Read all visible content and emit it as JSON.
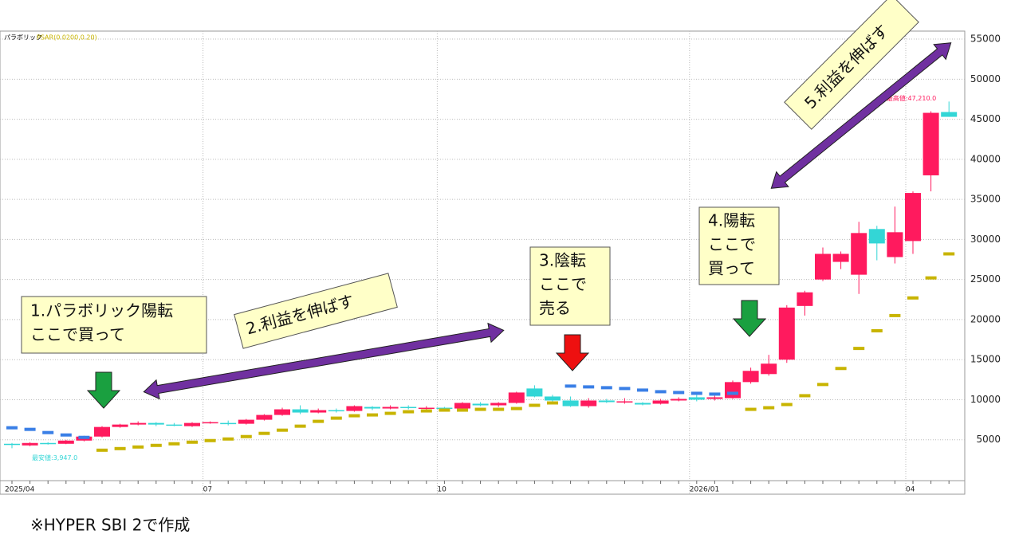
{
  "chart_data": {
    "type": "candlestick",
    "indicator_label": "パラボリック",
    "psar_label": "PSAR(0.0200,0.20)",
    "categories": [
      "2025/04",
      null,
      null,
      null,
      null,
      null,
      null,
      null,
      null,
      null,
      null,
      "07",
      null,
      null,
      null,
      null,
      null,
      null,
      null,
      null,
      null,
      null,
      null,
      null,
      "10",
      null,
      null,
      null,
      null,
      null,
      null,
      null,
      null,
      null,
      null,
      null,
      null,
      null,
      "2026/01",
      null,
      null,
      null,
      null,
      null,
      null,
      null,
      null,
      null,
      null,
      null,
      "04",
      null,
      null
    ],
    "open": [
      4500,
      4300,
      4600,
      4500,
      4900,
      5400,
      6600,
      6900,
      7100,
      6900,
      6700,
      7100,
      7100,
      7000,
      7500,
      8100,
      8800,
      8400,
      8700,
      8600,
      9100,
      8900,
      9100,
      8900,
      9000,
      8900,
      9500,
      9300,
      9600,
      11400,
      10400,
      9900,
      9200,
      9900,
      9700,
      9600,
      9500,
      9900,
      10300,
      10100,
      10200,
      12200,
      13200,
      15000,
      21700,
      25000,
      27200,
      25600,
      31300,
      27800,
      29800,
      38000,
      45900
    ],
    "high": [
      4600,
      4700,
      4700,
      5000,
      5500,
      6700,
      7000,
      7300,
      7200,
      7100,
      7200,
      7300,
      7400,
      7600,
      8200,
      9000,
      9300,
      8900,
      8900,
      9300,
      9200,
      9300,
      9300,
      9200,
      9100,
      9700,
      9700,
      9700,
      11000,
      11800,
      10600,
      10400,
      10200,
      10100,
      10200,
      9700,
      10100,
      10300,
      10600,
      10500,
      12400,
      14000,
      15600,
      21800,
      23600,
      29000,
      28500,
      32200,
      31700,
      34100,
      36000,
      46000,
      47210
    ],
    "low": [
      3947,
      4200,
      4400,
      4450,
      4800,
      5300,
      6500,
      6800,
      6700,
      6700,
      6600,
      7000,
      6800,
      6900,
      7400,
      8000,
      8200,
      8300,
      8400,
      8500,
      8700,
      8800,
      8800,
      8700,
      8700,
      8800,
      9200,
      9100,
      9500,
      10300,
      9800,
      9100,
      9000,
      9600,
      9500,
      9300,
      9400,
      9800,
      9800,
      9900,
      10100,
      12000,
      13000,
      14600,
      20500,
      24800,
      26300,
      23200,
      27400,
      27000,
      28200,
      36000,
      45300
    ],
    "close": [
      4350,
      4600,
      4500,
      4900,
      5400,
      6600,
      6900,
      7100,
      6900,
      6850,
      7100,
      7200,
      7050,
      7500,
      8100,
      8800,
      8400,
      8700,
      8600,
      9200,
      8900,
      9100,
      8950,
      9000,
      8900,
      9600,
      9300,
      9600,
      10900,
      10400,
      9900,
      9200,
      9900,
      9700,
      9800,
      9400,
      9900,
      10100,
      10000,
      10300,
      12200,
      13600,
      14500,
      21500,
      23400,
      28200,
      28200,
      30800,
      29500,
      30900,
      35800,
      45800,
      45300
    ],
    "psar": [
      6500,
      6300,
      5900,
      5600,
      5300,
      3700,
      3900,
      4100,
      4300,
      4500,
      4700,
      4900,
      5100,
      5400,
      5800,
      6200,
      6700,
      7300,
      7700,
      8000,
      8100,
      8300,
      8500,
      8600,
      8700,
      8700,
      8800,
      8800,
      8900,
      9300,
      9600,
      11700,
      11600,
      11500,
      11400,
      11200,
      11000,
      10900,
      10800,
      10700,
      10800,
      8800,
      9000,
      9400,
      10500,
      11900,
      13900,
      16400,
      18600,
      20500,
      22700,
      25200,
      28200
    ],
    "up_color": "#ff1a5e",
    "down_color": "#33d6d6",
    "psar_above_color": "#3a7fe6",
    "psar_below_color": "#c8b400",
    "ylim": [
      0,
      56000
    ],
    "yticks": [
      5000,
      10000,
      15000,
      20000,
      25000,
      30000,
      35000,
      40000,
      45000,
      50000,
      55000
    ],
    "grid": true,
    "high_label": "最高値:47,210.0",
    "low_label": "最安値:3,947.0",
    "annotations": [
      {
        "lines": [
          "1.パラボリック陽転",
          "ここで買って"
        ]
      },
      {
        "lines": [
          "2.利益を伸ばす"
        ]
      },
      {
        "lines": [
          "3.陰転",
          "ここで",
          "売る"
        ]
      },
      {
        "lines": [
          "4.陽転",
          "ここで",
          "買って"
        ]
      },
      {
        "lines": [
          "5.利益を伸ばす"
        ]
      }
    ]
  },
  "footer": "※HYPER SBI 2で作成"
}
